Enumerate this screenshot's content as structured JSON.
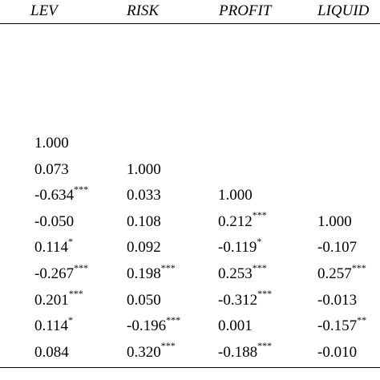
{
  "table": {
    "headers": [
      "LEV",
      "RISK",
      "PROFIT",
      "LIQUID"
    ],
    "rows": [
      [
        {
          "v": "1.000",
          "s": ""
        },
        {
          "v": "",
          "s": ""
        },
        {
          "v": "",
          "s": ""
        },
        {
          "v": "",
          "s": ""
        }
      ],
      [
        {
          "v": "0.073",
          "s": ""
        },
        {
          "v": "1.000",
          "s": ""
        },
        {
          "v": "",
          "s": ""
        },
        {
          "v": "",
          "s": ""
        }
      ],
      [
        {
          "v": "-0.634",
          "s": "***"
        },
        {
          "v": "0.033",
          "s": ""
        },
        {
          "v": "1.000",
          "s": ""
        },
        {
          "v": "",
          "s": ""
        }
      ],
      [
        {
          "v": "-0.050",
          "s": ""
        },
        {
          "v": "0.108",
          "s": ""
        },
        {
          "v": "0.212",
          "s": "***"
        },
        {
          "v": "1.000",
          "s": ""
        }
      ],
      [
        {
          "v": "0.114",
          "s": "*"
        },
        {
          "v": "0.092",
          "s": ""
        },
        {
          "v": "-0.119",
          "s": "*"
        },
        {
          "v": "-0.107",
          "s": ""
        }
      ],
      [
        {
          "v": "-0.267",
          "s": "***"
        },
        {
          "v": "0.198",
          "s": "***"
        },
        {
          "v": "0.253",
          "s": "***"
        },
        {
          "v": "0.257",
          "s": "***"
        }
      ],
      [
        {
          "v": "0.201",
          "s": "***"
        },
        {
          "v": "0.050",
          "s": ""
        },
        {
          "v": "-0.312",
          "s": "***"
        },
        {
          "v": "-0.013",
          "s": ""
        }
      ],
      [
        {
          "v": "0.114",
          "s": "*"
        },
        {
          "v": "-0.196",
          "s": "***"
        },
        {
          "v": "0.001",
          "s": ""
        },
        {
          "v": "-0.157",
          "s": "**"
        }
      ],
      [
        {
          "v": "0.084",
          "s": ""
        },
        {
          "v": "0.320",
          "s": "***"
        },
        {
          "v": "-0.188",
          "s": "***"
        },
        {
          "v": "-0.010",
          "s": ""
        }
      ]
    ]
  }
}
